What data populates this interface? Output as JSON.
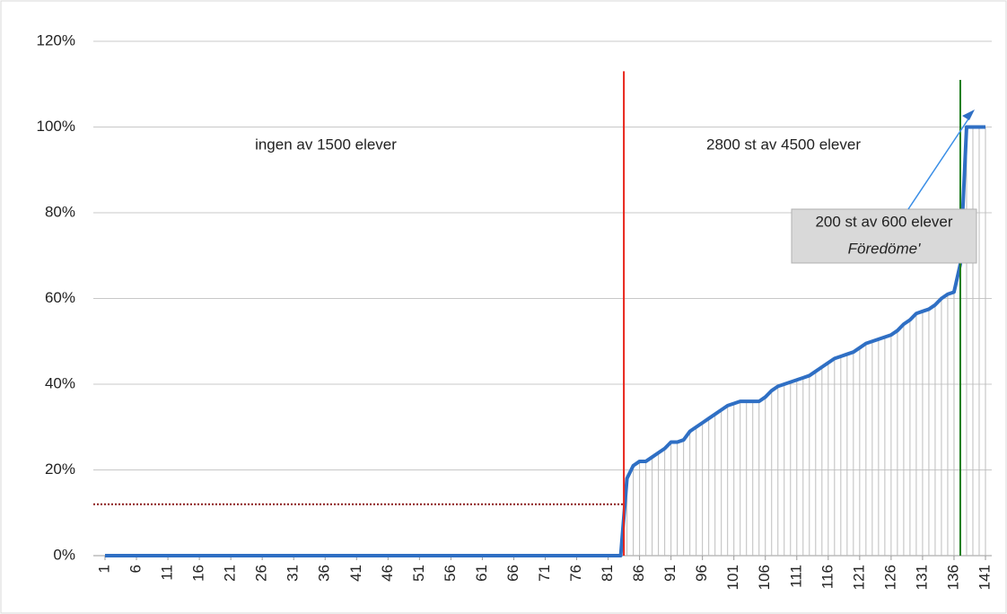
{
  "chart_data": {
    "type": "line",
    "x": [
      1,
      2,
      3,
      4,
      5,
      6,
      7,
      8,
      9,
      10,
      11,
      12,
      13,
      14,
      15,
      16,
      17,
      18,
      19,
      20,
      21,
      22,
      23,
      24,
      25,
      26,
      27,
      28,
      29,
      30,
      31,
      32,
      33,
      34,
      35,
      36,
      37,
      38,
      39,
      40,
      41,
      42,
      43,
      44,
      45,
      46,
      47,
      48,
      49,
      50,
      51,
      52,
      53,
      54,
      55,
      56,
      57,
      58,
      59,
      60,
      61,
      62,
      63,
      64,
      65,
      66,
      67,
      68,
      69,
      70,
      71,
      72,
      73,
      74,
      75,
      76,
      77,
      78,
      79,
      80,
      81,
      82,
      83,
      84,
      85,
      86,
      87,
      88,
      89,
      90,
      91,
      92,
      93,
      94,
      95,
      96,
      97,
      98,
      99,
      100,
      101,
      102,
      103,
      104,
      105,
      106,
      107,
      108,
      109,
      110,
      111,
      112,
      113,
      114,
      115,
      116,
      117,
      118,
      119,
      120,
      121,
      122,
      123,
      124,
      125,
      126,
      127,
      128,
      129,
      130,
      131,
      132,
      133,
      134,
      135,
      136,
      137,
      138,
      139,
      140,
      141
    ],
    "series": [
      {
        "color": "#2f6fc4",
        "values": [
          0,
          0,
          0,
          0,
          0,
          0,
          0,
          0,
          0,
          0,
          0,
          0,
          0,
          0,
          0,
          0,
          0,
          0,
          0,
          0,
          0,
          0,
          0,
          0,
          0,
          0,
          0,
          0,
          0,
          0,
          0,
          0,
          0,
          0,
          0,
          0,
          0,
          0,
          0,
          0,
          0,
          0,
          0,
          0,
          0,
          0,
          0,
          0,
          0,
          0,
          0,
          0,
          0,
          0,
          0,
          0,
          0,
          0,
          0,
          0,
          0,
          0,
          0,
          0,
          0,
          0,
          0,
          0,
          0,
          0,
          0,
          0,
          0,
          0,
          0,
          0,
          0,
          0,
          0,
          0,
          0,
          0,
          0,
          18,
          21,
          22,
          22,
          23,
          24,
          25,
          26.5,
          26.5,
          27,
          29,
          30,
          31,
          32,
          33,
          34,
          35,
          35.5,
          36,
          36,
          36,
          36,
          37,
          38.5,
          39.5,
          40,
          40.5,
          41,
          41.5,
          42,
          43,
          44,
          45,
          46,
          46.5,
          47,
          47.5,
          48.5,
          49.5,
          50,
          50.5,
          51,
          51.5,
          52.5,
          54,
          55,
          56.5,
          57,
          57.5,
          58.5,
          60,
          61,
          61.5,
          68,
          100,
          100,
          100,
          100
        ]
      }
    ],
    "xlim": [
      0,
      142
    ],
    "xticks": [
      1,
      6,
      11,
      16,
      21,
      26,
      31,
      36,
      41,
      46,
      51,
      56,
      61,
      66,
      71,
      76,
      81,
      86,
      91,
      96,
      101,
      106,
      111,
      116,
      121,
      126,
      131,
      136,
      141
    ],
    "ylim": [
      0,
      120
    ],
    "yticks": [
      {
        "value": 0,
        "label": "0%"
      },
      {
        "value": 20,
        "label": "20%"
      },
      {
        "value": 40,
        "label": "40%"
      },
      {
        "value": 60,
        "label": "60%"
      },
      {
        "value": 80,
        "label": "80%"
      },
      {
        "value": 100,
        "label": "100%"
      },
      {
        "value": 120,
        "label": "120%"
      }
    ],
    "grid": true,
    "drop_lines_color": "#bdbdbd",
    "vlines": [
      {
        "x": 83.5,
        "top": 113,
        "color": "#e8251b"
      },
      {
        "x": 137,
        "top": 111,
        "color": "#1e7d1e"
      }
    ],
    "hline": {
      "y": 12,
      "x_end": 83.5,
      "color": "#8b1a1a"
    },
    "annotations": [
      "ingen av 1500 elever",
      "2800 st av 4500 elever",
      "200 st av 600 elever",
      "Föredöme'"
    ]
  }
}
